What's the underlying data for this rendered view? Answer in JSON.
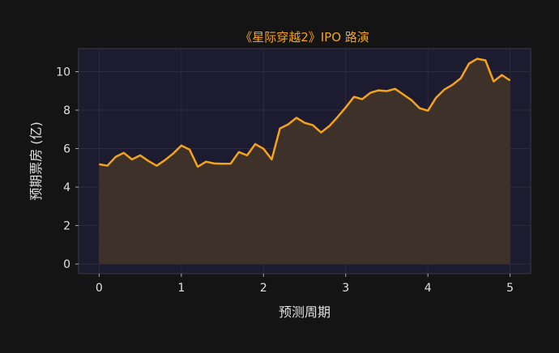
{
  "chart_data": {
    "type": "area",
    "title": "《星际穿越2》IPO 路演",
    "xlabel": "预测周期",
    "ylabel": "预期票房 (亿)",
    "xlim": [
      -0.25,
      5.25
    ],
    "ylim": [
      -0.5,
      11.2
    ],
    "xticks": [
      0,
      1,
      2,
      3,
      4,
      5
    ],
    "yticks": [
      0,
      2,
      4,
      6,
      8,
      10
    ],
    "grid": true,
    "legend": "none",
    "colors": {
      "line": "#f5a31a",
      "fill": "#3e3129",
      "title": "#f5a31a",
      "plot_bg": "#1c1b2f",
      "page_bg": "#141414",
      "text": "#e0e0e0"
    },
    "x": [
      0,
      0.1,
      0.2,
      0.3,
      0.4,
      0.5,
      0.6,
      0.7,
      0.8,
      0.9,
      1.0,
      1.1,
      1.2,
      1.3,
      1.4,
      1.5,
      1.6,
      1.7,
      1.8,
      1.9,
      2.0,
      2.1,
      2.2,
      2.3,
      2.4,
      2.5,
      2.6,
      2.7,
      2.8,
      2.9,
      3.0,
      3.1,
      3.2,
      3.3,
      3.4,
      3.5,
      3.6,
      3.7,
      3.8,
      3.9,
      4.0,
      4.1,
      4.2,
      4.3,
      4.4,
      4.5,
      4.6,
      4.7,
      4.8,
      4.9,
      5.0
    ],
    "y": [
      5.19,
      5.11,
      5.57,
      5.78,
      5.44,
      5.65,
      5.36,
      5.11,
      5.4,
      5.74,
      6.16,
      5.95,
      5.06,
      5.32,
      5.23,
      5.21,
      5.22,
      5.82,
      5.65,
      6.24,
      5.99,
      5.44,
      7.05,
      7.26,
      7.6,
      7.34,
      7.22,
      6.84,
      7.17,
      7.64,
      8.14,
      8.69,
      8.57,
      8.9,
      9.03,
      8.99,
      9.11,
      8.82,
      8.52,
      8.1,
      7.97,
      8.65,
      9.07,
      9.32,
      9.66,
      10.42,
      10.67,
      10.59,
      9.49,
      9.83,
      9.54
    ]
  }
}
